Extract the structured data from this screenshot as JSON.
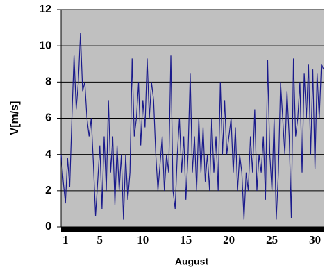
{
  "chart_data": {
    "type": "line",
    "x_label": "August",
    "y_label": "V[m/s]",
    "x": [
      0.5,
      0.75,
      1,
      1.25,
      1.5,
      1.75,
      2,
      2.25,
      2.5,
      2.75,
      3,
      3.25,
      3.5,
      3.75,
      4,
      4.25,
      4.5,
      4.75,
      5,
      5.25,
      5.5,
      5.75,
      6,
      6.25,
      6.5,
      6.75,
      7,
      7.25,
      7.5,
      7.75,
      8,
      8.25,
      8.5,
      8.75,
      9,
      9.25,
      9.5,
      9.75,
      10,
      10.25,
      10.5,
      10.75,
      11,
      11.25,
      11.5,
      11.75,
      12,
      12.25,
      12.5,
      12.75,
      13,
      13.25,
      13.5,
      13.75,
      14,
      14.25,
      14.5,
      14.75,
      15,
      15.25,
      15.5,
      15.75,
      16,
      16.25,
      16.5,
      16.75,
      17,
      17.25,
      17.5,
      17.75,
      18,
      18.25,
      18.5,
      18.75,
      19,
      19.25,
      19.5,
      19.75,
      20,
      20.25,
      20.5,
      20.75,
      21,
      21.25,
      21.5,
      21.75,
      22,
      22.25,
      22.5,
      22.75,
      23,
      23.25,
      23.5,
      23.75,
      24,
      24.25,
      24.5,
      24.75,
      25,
      25.25,
      25.5,
      25.75,
      26,
      26.25,
      26.5,
      26.75,
      27,
      27.25,
      27.5,
      27.75,
      28,
      28.25,
      28.5,
      28.75,
      29,
      29.25,
      29.5,
      29.75,
      30,
      30.25,
      30.5,
      30.75,
      31
    ],
    "series": [
      {
        "name": "V",
        "color": "#1a1a8c",
        "values": [
          4,
          2.5,
          1.3,
          3.8,
          2.2,
          6,
          9.5,
          6.5,
          8,
          10.7,
          7.5,
          8,
          6,
          5,
          6,
          3.5,
          0.6,
          2.5,
          4.5,
          1,
          5,
          2,
          7,
          3,
          5,
          1.2,
          4.5,
          2,
          4,
          0.4,
          4,
          1.5,
          3,
          9.3,
          5,
          6,
          8,
          4.5,
          7,
          5.5,
          9.3,
          6,
          8,
          7,
          4,
          2,
          3.5,
          5,
          2,
          4,
          3,
          9.5,
          2,
          1,
          4,
          6,
          3,
          5,
          1.5,
          4,
          8.5,
          3,
          5,
          2,
          6,
          3,
          5.5,
          2.5,
          4,
          2,
          6,
          3,
          5,
          2,
          8,
          4,
          7,
          4,
          5,
          6,
          3,
          5.5,
          2,
          4,
          3,
          0.4,
          3,
          2,
          5,
          3,
          6.5,
          2,
          4,
          3,
          5,
          1.5,
          9.2,
          4,
          2,
          6,
          0.4,
          3,
          8,
          6,
          4,
          7.5,
          5,
          0.5,
          9.3,
          5,
          6,
          8,
          3,
          8.5,
          6,
          9,
          4,
          8.7,
          3.2,
          8.5,
          6,
          9,
          8.7
        ]
      }
    ],
    "xlim": [
      0.5,
      31
    ],
    "xticks": [
      1,
      5,
      10,
      15,
      20,
      25,
      30
    ],
    "ylim": [
      0,
      12
    ],
    "yticks": [
      0,
      2,
      4,
      6,
      8,
      10,
      12
    ],
    "grid": true,
    "background": "#c0c0c0"
  }
}
